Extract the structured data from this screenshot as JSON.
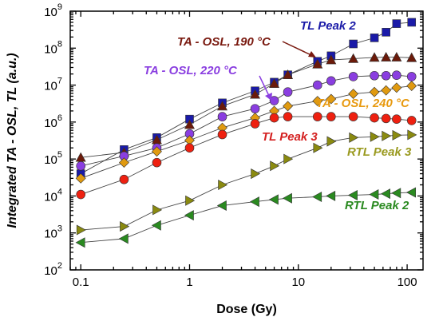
{
  "chart_data": {
    "type": "scatter",
    "xlabel": "Dose (Gy)",
    "ylabel": "Integrated TA - OSL, TL (a.u.)",
    "xscale": "log",
    "yscale": "log",
    "xlim": [
      0.08,
      140
    ],
    "ylim": [
      100,
      1000000000
    ],
    "x_ticks": [
      {
        "value": 0.1,
        "label": "0.1"
      },
      {
        "value": 1,
        "label": "1"
      },
      {
        "value": 10,
        "label": "10"
      },
      {
        "value": 100,
        "label": "100"
      }
    ],
    "y_ticks": [
      {
        "value": 100,
        "base": "10",
        "exp": "2"
      },
      {
        "value": 1000,
        "base": "10",
        "exp": "3"
      },
      {
        "value": 10000,
        "base": "10",
        "exp": "4"
      },
      {
        "value": 100000,
        "base": "10",
        "exp": "5"
      },
      {
        "value": 1000000,
        "base": "10",
        "exp": "6"
      },
      {
        "value": 10000000,
        "base": "10",
        "exp": "7"
      },
      {
        "value": 100000000,
        "base": "10",
        "exp": "8"
      },
      {
        "value": 1000000000,
        "base": "10",
        "exp": "9"
      }
    ],
    "x": [
      0.1,
      0.25,
      0.5,
      1,
      2,
      4,
      6,
      8,
      15,
      20,
      32,
      50,
      64,
      80,
      110
    ],
    "series": [
      {
        "name": "TL Peak 2",
        "marker": "square",
        "color": "#1a1aa8",
        "label_color": "#1a1aa8",
        "values": [
          40000,
          180000,
          380000,
          1200000,
          3300000,
          7000000,
          12000000,
          19000000,
          44000000,
          62000000,
          130000000,
          190000000,
          270000000,
          460000000,
          500000000
        ]
      },
      {
        "name": "TA - OSL, 190 °C",
        "marker": "triangle-up",
        "color": "#6b1a0a",
        "label_color": "#7a1a10",
        "values": [
          110000,
          150000,
          330000,
          850000,
          2700000,
          5600000,
          11000000,
          19000000,
          37000000,
          48000000,
          52000000,
          56000000,
          57000000,
          57000000,
          55000000
        ]
      },
      {
        "name": "TA - OSL, 220 °C",
        "marker": "circle",
        "color": "#8a3ee0",
        "label_color": "#8a3ee0",
        "values": [
          65000,
          120000,
          200000,
          480000,
          1400000,
          2300000,
          3800000,
          6500000,
          10000000,
          13000000,
          17000000,
          18000000,
          18000000,
          18500000,
          17000000
        ]
      },
      {
        "name": "TA - OSL, 240 °C",
        "marker": "diamond",
        "color": "#e09a10",
        "label_color": "#e89a10",
        "values": [
          30000,
          80000,
          160000,
          320000,
          700000,
          1300000,
          2000000,
          2700000,
          3700000,
          4200000,
          5800000,
          6500000,
          7200000,
          8500000,
          9500000
        ]
      },
      {
        "name": "TL Peak 3",
        "marker": "circle",
        "color": "#ee2010",
        "label_color": "#d42020",
        "values": [
          11000,
          28000,
          80000,
          200000,
          460000,
          900000,
          1300000,
          1400000,
          1400000,
          1400000,
          1400000,
          1300000,
          1250000,
          1200000,
          1100000
        ]
      },
      {
        "name": "RTL Peak 3",
        "marker": "triangle-right",
        "color": "#8a8a10",
        "label_color": "#9a9a20",
        "values": [
          1200,
          1500,
          4200,
          7500,
          20000,
          40000,
          65000,
          100000,
          200000,
          300000,
          380000,
          400000,
          420000,
          440000,
          450000
        ]
      },
      {
        "name": "RTL Peak 2",
        "marker": "triangle-left",
        "color": "#2a8a20",
        "label_color": "#2a8a20",
        "values": [
          550,
          700,
          1600,
          3000,
          5500,
          7000,
          8000,
          8700,
          9500,
          10000,
          10500,
          11000,
          11500,
          12000,
          12500
        ]
      }
    ],
    "grid": false,
    "legend": "inline labels"
  }
}
